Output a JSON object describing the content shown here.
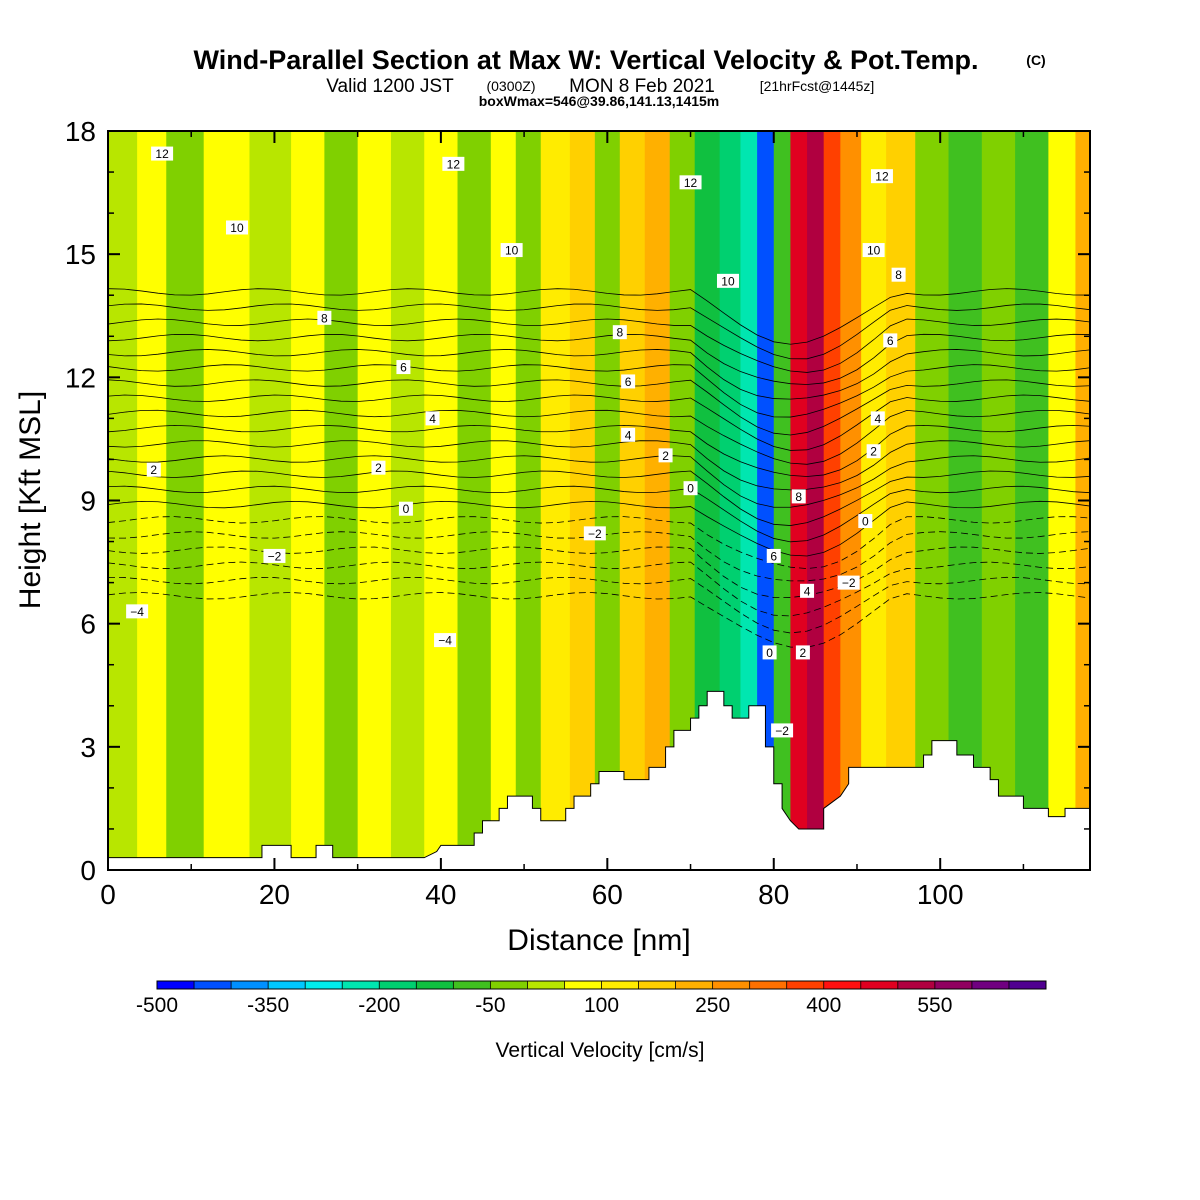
{
  "title": {
    "main": "Wind-Parallel Section at Max W: Vertical Velocity & Pot.Temp.",
    "copyright": "(C)",
    "valid_prefix": "Valid 1200 JST",
    "valid_utc": "(0300Z)",
    "valid_date": "MON 8 Feb 2021",
    "forecast": "[21hrFcst@1445z]",
    "box": "boxWmax=546@39.86,141.13,1415m"
  },
  "chart_data": {
    "type": "heatmap",
    "xlabel": "Distance [nm]",
    "ylabel": "Height [Kft MSL]",
    "xlim": [
      0,
      118
    ],
    "ylim": [
      0,
      18
    ],
    "x_ticks": [
      "0",
      "20",
      "40",
      "60",
      "80",
      "100"
    ],
    "y_ticks": [
      "0",
      "3",
      "6",
      "9",
      "12",
      "15",
      "18"
    ],
    "colorbar": {
      "title": "Vertical Velocity [cm/s]",
      "labels": [
        "-500",
        "-350",
        "-200",
        "-50",
        "100",
        "250",
        "400",
        "550"
      ],
      "colors": [
        "#0000ff",
        "#0050ff",
        "#0090ff",
        "#00c8ff",
        "#00ecec",
        "#00e6b0",
        "#00d070",
        "#10c040",
        "#40c020",
        "#80d000",
        "#b8e600",
        "#ffff00",
        "#ffec00",
        "#ffd000",
        "#ffb000",
        "#ff9000",
        "#ff7000",
        "#ff4000",
        "#ff1010",
        "#e00020",
        "#b00040",
        "#900060",
        "#700080",
        "#500090"
      ]
    },
    "velocity_columns": [
      {
        "x": 2,
        "value": -20
      },
      {
        "x": 5,
        "value": 20
      },
      {
        "x": 9,
        "value": -60
      },
      {
        "x": 14,
        "value": 0
      },
      {
        "x": 20,
        "value": -50
      },
      {
        "x": 24,
        "value": 10
      },
      {
        "x": 28,
        "value": -80
      },
      {
        "x": 32,
        "value": 20
      },
      {
        "x": 36,
        "value": -40
      },
      {
        "x": 40,
        "value": 10
      },
      {
        "x": 44,
        "value": -90
      },
      {
        "x": 48,
        "value": 30
      },
      {
        "x": 50,
        "value": -70
      },
      {
        "x": 54,
        "value": 60
      },
      {
        "x": 57,
        "value": 120
      },
      {
        "x": 60,
        "value": -60
      },
      {
        "x": 63,
        "value": 100
      },
      {
        "x": 66,
        "value": 150
      },
      {
        "x": 69,
        "value": -80
      },
      {
        "x": 72,
        "value": -180
      },
      {
        "x": 75,
        "value": -230
      },
      {
        "x": 77,
        "value": -300
      },
      {
        "x": 79,
        "value": -480
      },
      {
        "x": 81,
        "value": -150
      },
      {
        "x": 83,
        "value": 420
      },
      {
        "x": 85,
        "value": 480
      },
      {
        "x": 87,
        "value": 300
      },
      {
        "x": 89,
        "value": 200
      },
      {
        "x": 92,
        "value": 80
      },
      {
        "x": 95,
        "value": 130
      },
      {
        "x": 99,
        "value": -100
      },
      {
        "x": 103,
        "value": -130
      },
      {
        "x": 107,
        "value": -60
      },
      {
        "x": 111,
        "value": -150
      },
      {
        "x": 115,
        "value": 20
      },
      {
        "x": 117.5,
        "value": 150
      }
    ],
    "terrain": [
      [
        0,
        0.3
      ],
      [
        18.5,
        0.3
      ],
      [
        18.5,
        0.6
      ],
      [
        22,
        0.6
      ],
      [
        22,
        0.3
      ],
      [
        25,
        0.3
      ],
      [
        25,
        0.6
      ],
      [
        27,
        0.6
      ],
      [
        27,
        0.3
      ],
      [
        38,
        0.3
      ],
      [
        39.5,
        0.45
      ],
      [
        40,
        0.6
      ],
      [
        44,
        0.6
      ],
      [
        44,
        0.9
      ],
      [
        45,
        0.9
      ],
      [
        45,
        1.2
      ],
      [
        47,
        1.2
      ],
      [
        47,
        1.5
      ],
      [
        48,
        1.5
      ],
      [
        48,
        1.8
      ],
      [
        51,
        1.8
      ],
      [
        51,
        1.5
      ],
      [
        52,
        1.5
      ],
      [
        52,
        1.2
      ],
      [
        55,
        1.2
      ],
      [
        55,
        1.5
      ],
      [
        56,
        1.5
      ],
      [
        56,
        1.8
      ],
      [
        58,
        1.8
      ],
      [
        58,
        2.1
      ],
      [
        59,
        2.1
      ],
      [
        59,
        2.4
      ],
      [
        62,
        2.4
      ],
      [
        62,
        2.2
      ],
      [
        65,
        2.2
      ],
      [
        65,
        2.5
      ],
      [
        67,
        2.5
      ],
      [
        67,
        3.0
      ],
      [
        68,
        3.0
      ],
      [
        68,
        3.4
      ],
      [
        70,
        3.4
      ],
      [
        70,
        3.7
      ],
      [
        71,
        3.7
      ],
      [
        71,
        4.0
      ],
      [
        72,
        4.0
      ],
      [
        72,
        4.35
      ],
      [
        74,
        4.35
      ],
      [
        74,
        4.0
      ],
      [
        75,
        4.0
      ],
      [
        75,
        3.7
      ],
      [
        77,
        3.7
      ],
      [
        77,
        4.0
      ],
      [
        79,
        4.0
      ],
      [
        79,
        3.0
      ],
      [
        80,
        3.0
      ],
      [
        80,
        2.1
      ],
      [
        81,
        2.1
      ],
      [
        81,
        1.5
      ],
      [
        82,
        1.2
      ],
      [
        83,
        1.0
      ],
      [
        86,
        1.0
      ],
      [
        86,
        1.5
      ],
      [
        88,
        1.8
      ],
      [
        89,
        2.1
      ],
      [
        89,
        2.5
      ],
      [
        98,
        2.5
      ],
      [
        98,
        2.8
      ],
      [
        99,
        2.8
      ],
      [
        99,
        3.15
      ],
      [
        102,
        3.15
      ],
      [
        102,
        2.8
      ],
      [
        104,
        2.8
      ],
      [
        104,
        2.5
      ],
      [
        106,
        2.5
      ],
      [
        106,
        2.2
      ],
      [
        107,
        2.2
      ],
      [
        107,
        1.8
      ],
      [
        110,
        1.8
      ],
      [
        110,
        1.5
      ],
      [
        113,
        1.5
      ],
      [
        113,
        1.3
      ],
      [
        115,
        1.3
      ],
      [
        115,
        1.5
      ],
      [
        118,
        1.5
      ]
    ],
    "isotherm_labels": [
      {
        "text": "12",
        "x": 6.5,
        "y": 17.45
      },
      {
        "text": "10",
        "x": 15.5,
        "y": 15.65
      },
      {
        "text": "8",
        "x": 26,
        "y": 13.45
      },
      {
        "text": "6",
        "x": 35.5,
        "y": 12.25
      },
      {
        "text": "4",
        "x": 39,
        "y": 11.0
      },
      {
        "text": "2",
        "x": 5.5,
        "y": 9.75
      },
      {
        "text": "2",
        "x": 32.5,
        "y": 9.8
      },
      {
        "text": "0",
        "x": 35.8,
        "y": 8.8
      },
      {
        "text": "−2",
        "x": 20,
        "y": 7.65
      },
      {
        "text": "−4",
        "x": 3.5,
        "y": 6.3
      },
      {
        "text": "−4",
        "x": 40.5,
        "y": 5.6
      },
      {
        "text": "12",
        "x": 41.5,
        "y": 17.2
      },
      {
        "text": "10",
        "x": 48.5,
        "y": 15.1
      },
      {
        "text": "8",
        "x": 61.5,
        "y": 13.1
      },
      {
        "text": "6",
        "x": 62.5,
        "y": 11.9
      },
      {
        "text": "4",
        "x": 62.5,
        "y": 10.6
      },
      {
        "text": "2",
        "x": 67,
        "y": 10.1
      },
      {
        "text": "0",
        "x": 70,
        "y": 9.3
      },
      {
        "text": "−2",
        "x": 58.5,
        "y": 8.2
      },
      {
        "text": "12",
        "x": 70,
        "y": 16.75
      },
      {
        "text": "10",
        "x": 74.5,
        "y": 14.35
      },
      {
        "text": "12",
        "x": 93,
        "y": 16.9
      },
      {
        "text": "10",
        "x": 92,
        "y": 15.1
      },
      {
        "text": "8",
        "x": 95,
        "y": 14.5
      },
      {
        "text": "6",
        "x": 94,
        "y": 12.9
      },
      {
        "text": "4",
        "x": 92.5,
        "y": 11.0
      },
      {
        "text": "2",
        "x": 92,
        "y": 10.2
      },
      {
        "text": "0",
        "x": 91,
        "y": 8.5
      },
      {
        "text": "−2",
        "x": 89,
        "y": 7.0
      },
      {
        "text": "8",
        "x": 83,
        "y": 9.1
      },
      {
        "text": "6",
        "x": 80,
        "y": 7.65
      },
      {
        "text": "4",
        "x": 84,
        "y": 6.8
      },
      {
        "text": "2",
        "x": 83.5,
        "y": 5.3
      },
      {
        "text": "0",
        "x": 79.5,
        "y": 5.3
      },
      {
        "text": "−2",
        "x": 81,
        "y": 3.4
      }
    ]
  }
}
